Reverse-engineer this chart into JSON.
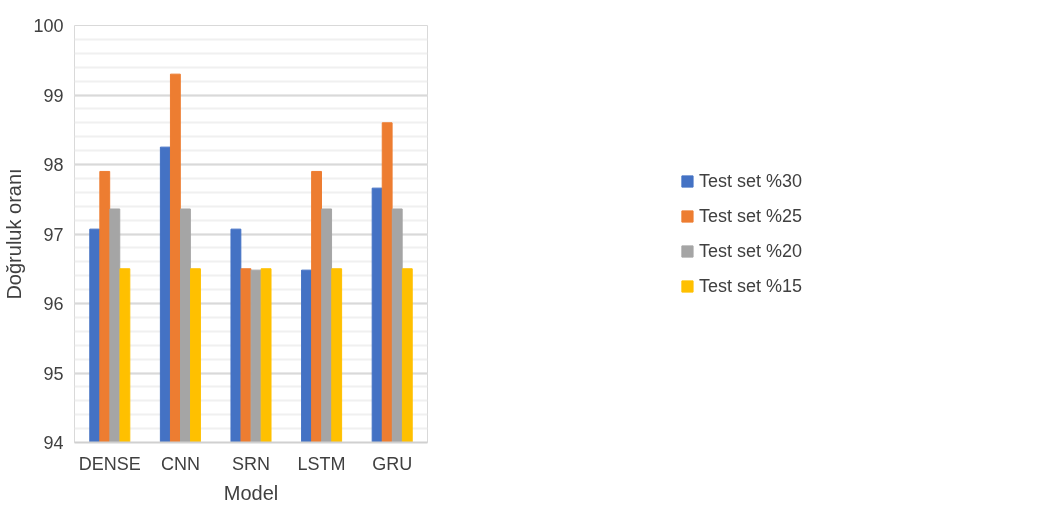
{
  "chart_data": {
    "type": "bar",
    "xlabel": "Model",
    "ylabel": "Doğruluk oranı",
    "categories": [
      "DENSE",
      "CNN",
      "SRN",
      "LSTM",
      "GRU"
    ],
    "series": [
      {
        "name": "Test set %30",
        "color": "#4472c4",
        "values": [
          97.07,
          98.25,
          97.07,
          96.48,
          97.66
        ]
      },
      {
        "name": "Test set %25",
        "color": "#ed7d31",
        "values": [
          97.9,
          99.3,
          96.5,
          97.9,
          98.6
        ]
      },
      {
        "name": "Test set %20",
        "color": "#a5a5a5",
        "values": [
          97.36,
          97.36,
          96.48,
          97.36,
          97.36
        ]
      },
      {
        "name": "Test set %15",
        "color": "#ffc000",
        "values": [
          96.5,
          96.5,
          96.5,
          96.5,
          96.5
        ]
      }
    ],
    "ylim": [
      94,
      100
    ],
    "yticks": [
      94,
      95,
      96,
      97,
      98,
      99,
      100
    ],
    "grid": "y",
    "legend": "right"
  }
}
